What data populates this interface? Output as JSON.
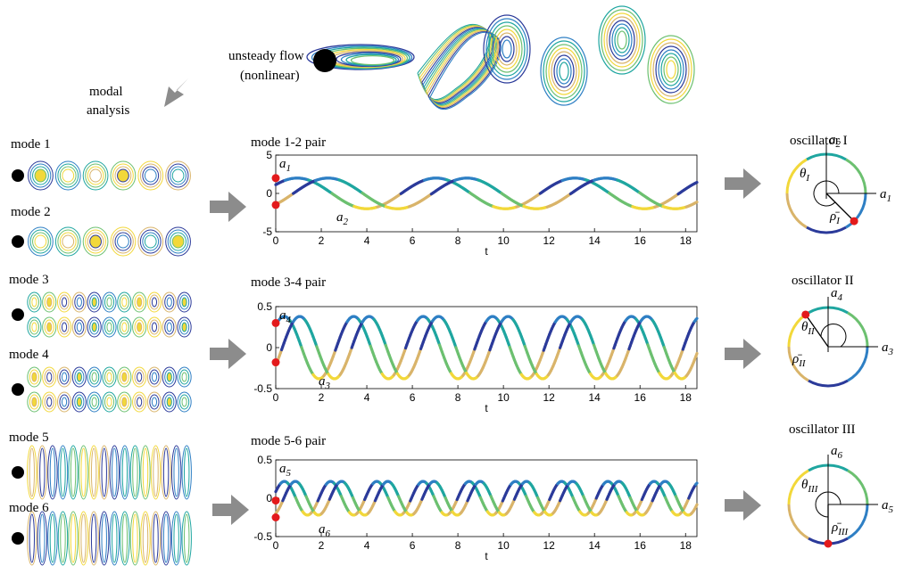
{
  "top": {
    "flow_label_1": "unsteady flow",
    "flow_label_2": "(nonlinear)",
    "modal_label_1": "modal",
    "modal_label_2": "analysis"
  },
  "modes": [
    {
      "label": "mode 1",
      "family": 1,
      "phase": 0
    },
    {
      "label": "mode 2",
      "family": 1,
      "phase": 1
    },
    {
      "label": "mode 3",
      "family": 2,
      "phase": 0
    },
    {
      "label": "mode 4",
      "family": 2,
      "phase": 1
    },
    {
      "label": "mode 5",
      "family": 3,
      "phase": 0
    },
    {
      "label": "mode 6",
      "family": 3,
      "phase": 1
    }
  ],
  "colors": {
    "dark_blue": "#2b3a9a",
    "blue": "#2e7fc4",
    "teal": "#1fa6a0",
    "green": "#6cc070",
    "yellow": "#f2d83a",
    "tan": "#d9b46a",
    "red": "#e31a1c",
    "arrow": "#8c8c8c"
  },
  "chart_data": [
    {
      "type": "line",
      "title": "mode 1-2 pair",
      "xlabel": "t",
      "xlim": [
        0,
        18.5
      ],
      "ylim": [
        -5,
        5
      ],
      "xticks": [
        "0",
        "2",
        "4",
        "6",
        "8",
        "10",
        "12",
        "14",
        "16",
        "18"
      ],
      "yticks": [
        "5",
        "0",
        "-5"
      ],
      "series": [
        {
          "name": "a1",
          "amplitude": 2,
          "period": 6.1,
          "phase_offset": 0.6
        },
        {
          "name": "a2",
          "amplitude": 2,
          "period": 6.1,
          "phase_offset": -0.8
        }
      ],
      "labels": {
        "upper": "a",
        "upper_sub": "1",
        "lower": "a",
        "lower_sub": "2"
      },
      "start_values": [
        2,
        -1.5
      ]
    },
    {
      "type": "line",
      "title": "mode 3-4 pair",
      "xlabel": "t",
      "xlim": [
        0,
        18.5
      ],
      "ylim": [
        -0.5,
        0.5
      ],
      "xticks": [
        "0",
        "2",
        "4",
        "6",
        "8",
        "10",
        "12",
        "14",
        "16",
        "18"
      ],
      "yticks": [
        "0.5",
        "0",
        "-0.5"
      ],
      "series": [
        {
          "name": "a4",
          "amplitude": 0.38,
          "period": 3.05,
          "phase_offset": 0.8
        },
        {
          "name": "a3",
          "amplitude": 0.38,
          "period": 3.05,
          "phase_offset": -0.6
        }
      ],
      "labels": {
        "upper": "a",
        "upper_sub": "4",
        "lower": "a",
        "lower_sub": "3"
      },
      "start_values": [
        0.3,
        -0.18
      ]
    },
    {
      "type": "line",
      "title": "mode 5-6 pair",
      "xlabel": "t",
      "xlim": [
        0,
        18.5
      ],
      "ylim": [
        -0.5,
        0.5
      ],
      "xticks": [
        "0",
        "2",
        "4",
        "6",
        "8",
        "10",
        "12",
        "14",
        "16",
        "18"
      ],
      "yticks": [
        "0.5",
        "0",
        "-0.5"
      ],
      "series": [
        {
          "name": "a5",
          "amplitude": 0.22,
          "period": 2.03,
          "phase_offset": 0.4
        },
        {
          "name": "a6",
          "amplitude": 0.22,
          "period": 2.03,
          "phase_offset": -1.1
        }
      ],
      "labels": {
        "upper": "a",
        "upper_sub": "5",
        "lower": "a",
        "lower_sub": "6"
      },
      "start_values": [
        -0.03,
        -0.25
      ]
    }
  ],
  "oscillators": [
    {
      "title": "oscillator I",
      "vaxis": "a",
      "vaxis_sub": "2",
      "haxis": "a",
      "haxis_sub": "1",
      "theta": "θ",
      "theta_sub": "I",
      "rho": "ρ̄",
      "rho_sub": "I",
      "point_angle_deg": -45
    },
    {
      "title": "oscillator II",
      "vaxis": "a",
      "vaxis_sub": "4",
      "haxis": "a",
      "haxis_sub": "3",
      "theta": "θ",
      "theta_sub": "II",
      "rho": "ρ̄",
      "rho_sub": "II",
      "point_angle_deg": 125
    },
    {
      "title": "oscillator III",
      "vaxis": "a",
      "vaxis_sub": "6",
      "haxis": "a",
      "haxis_sub": "5",
      "theta": "θ",
      "theta_sub": "III",
      "rho": "ρ̄",
      "rho_sub": "III",
      "point_angle_deg": -90
    }
  ]
}
